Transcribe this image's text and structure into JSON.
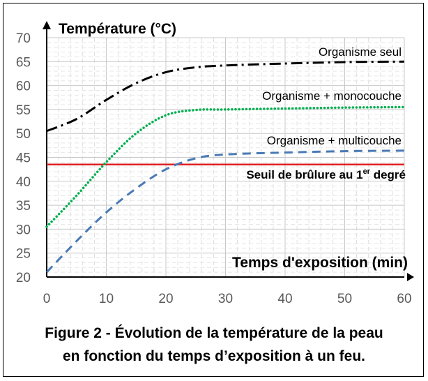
{
  "caption": {
    "line1": "Figure 2 - Évolution de la température de la peau",
    "line2": "en fonction du temps d’exposition à un feu."
  },
  "chart_data": {
    "type": "line",
    "ylabel": "Température (°C)",
    "xlabel": "Temps d'exposition (min)",
    "xlim": [
      0,
      60
    ],
    "ylim": [
      20,
      70
    ],
    "xticks": [
      0,
      10,
      20,
      30,
      40,
      50,
      60
    ],
    "yticks": [
      20,
      25,
      30,
      35,
      40,
      45,
      50,
      55,
      60,
      65,
      70
    ],
    "grid": true,
    "series": [
      {
        "name": "Organisme seul",
        "color": "#000000",
        "style": "dash-dot",
        "x": [
          0,
          5,
          10,
          15,
          20,
          25,
          30,
          40,
          50,
          60
        ],
        "y": [
          50.5,
          53,
          57,
          60.5,
          62.8,
          63.8,
          64.2,
          64.6,
          64.9,
          65
        ]
      },
      {
        "name": "Organisme + monocouche",
        "color": "#00b050",
        "style": "dotted",
        "x": [
          0,
          5,
          10,
          15,
          20,
          25,
          30,
          40,
          50,
          60
        ],
        "y": [
          30.5,
          37,
          44,
          50,
          53.8,
          54.9,
          55,
          55.2,
          55.4,
          55.5
        ]
      },
      {
        "name": "Organisme + multicouche",
        "color": "#4a7ab5",
        "style": "dashed",
        "x": [
          0,
          5,
          10,
          15,
          20,
          25,
          30,
          40,
          50,
          60
        ],
        "y": [
          21,
          27.5,
          33.5,
          38.5,
          42.5,
          44.8,
          45.6,
          46,
          46.3,
          46.4
        ]
      }
    ],
    "threshold": {
      "label_main": "Seuil de brûlure au 1",
      "label_sup": "er",
      "label_end": " degré",
      "value": 43.5,
      "color": "#e01f1f"
    }
  }
}
